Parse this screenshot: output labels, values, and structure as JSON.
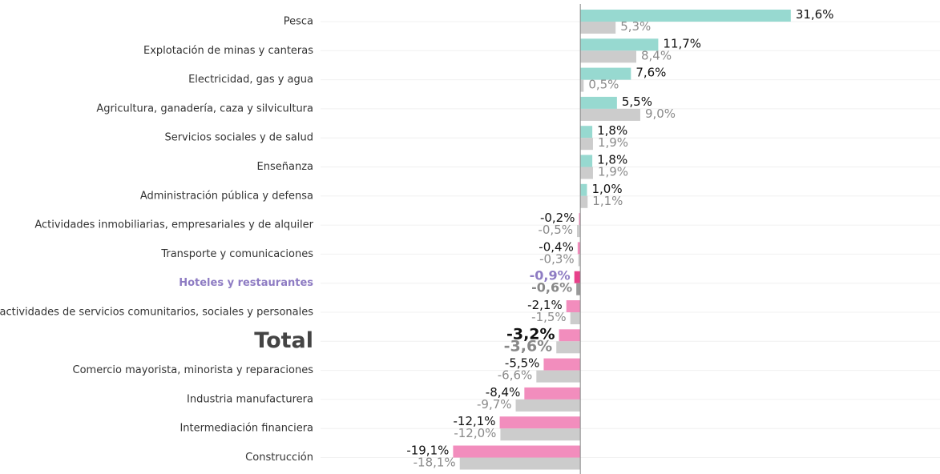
{
  "chart_data": {
    "type": "bar",
    "orientation": "horizontal",
    "categories": [
      "Pesca",
      "Explotación de minas y canteras",
      "Electricidad, gas y agua",
      "Agricultura, ganadería, caza y silvicultura",
      "Servicios sociales y de salud",
      "Enseñanza",
      "Administración pública y defensa",
      "Actividades inmobiliarias, empresariales y de alquiler",
      "Transporte y comunicaciones",
      "Hoteles y restaurantes",
      "Otras actividades de servicios comunitarios, sociales y personales",
      "Total",
      "Comercio mayorista, minorista y reparaciones",
      "Industria manufacturera",
      "Intermediación financiera",
      "Construcción"
    ],
    "series": [
      {
        "color_positive": "#97d9d0",
        "color_negative": "#f28dbd",
        "color_highlight": "#e8408a",
        "label_color": "#111111",
        "values": [
          31.6,
          11.7,
          7.6,
          5.5,
          1.8,
          1.8,
          1.0,
          -0.2,
          -0.4,
          -0.9,
          -2.1,
          -3.2,
          -5.5,
          -8.4,
          -12.1,
          -19.1
        ],
        "value_labels": [
          "31,6%",
          "11,7%",
          "7,6%",
          "5,5%",
          "1,8%",
          "1,8%",
          "1,0%",
          "-0,2%",
          "-0,4%",
          "-0,9%",
          "-2,1%",
          "-3,2%",
          "-5,5%",
          "-8,4%",
          "-12,1%",
          "-19,1%"
        ]
      },
      {
        "color_positive": "#cccccc",
        "color_negative": "#cccccc",
        "color_highlight": "#999999",
        "label_color": "#8a8a8a",
        "values": [
          5.3,
          8.4,
          0.5,
          9.0,
          1.9,
          1.9,
          1.1,
          -0.5,
          -0.3,
          -0.6,
          -1.5,
          -3.6,
          -6.6,
          -9.7,
          -12.0,
          -18.1
        ],
        "value_labels": [
          "5,3%",
          "8,4%",
          "0,5%",
          "9,0%",
          "1,9%",
          "1,9%",
          "1,1%",
          "-0,5%",
          "-0,3%",
          "-0,6%",
          "-1,5%",
          "-3,6%",
          "-6,6%",
          "-9,7%",
          "-12,0%",
          "-18,1%"
        ]
      }
    ],
    "xlim": [
      -39,
      54
    ],
    "highlight_index": 9,
    "highlight_color": "#8e7cc3",
    "total_index": 11,
    "grid": true
  }
}
